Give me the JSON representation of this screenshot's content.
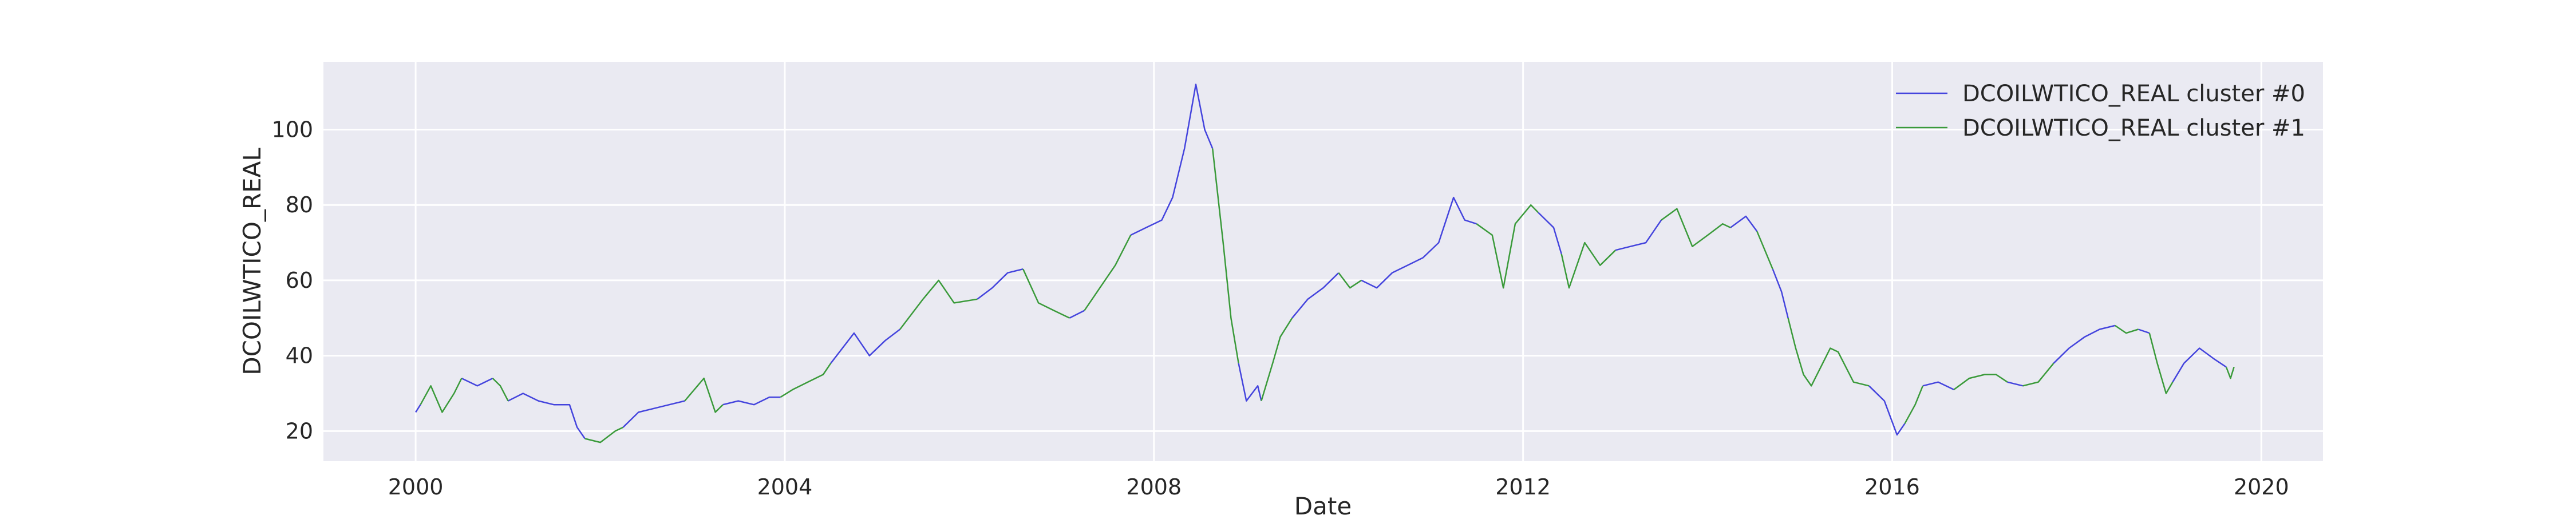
{
  "chart_data": {
    "type": "line",
    "title": "",
    "xlabel": "Date",
    "ylabel": "DCOILWTICO_REAL",
    "xlim": [
      "1999-01-01",
      "2020-09-01"
    ],
    "ylim": [
      12,
      118
    ],
    "xticks": [
      "2000",
      "2004",
      "2008",
      "2012",
      "2016",
      "2020"
    ],
    "xtick_dates": [
      "2000-01-01",
      "2004-01-01",
      "2008-01-01",
      "2012-01-01",
      "2016-01-01",
      "2020-01-01"
    ],
    "yticks": [
      20,
      40,
      60,
      80,
      100
    ],
    "grid": true,
    "legend": "top-right",
    "background": "#eaeaf2",
    "series": [
      {
        "name": "DCOILWTICO_REAL cluster #0",
        "color": "#4444dd",
        "segments": [
          [
            [
              "2000-01-01",
              25
            ],
            [
              "2000-01-20",
              27
            ]
          ],
          [
            [
              "2000-07-01",
              34
            ],
            [
              "2000-09-01",
              32
            ],
            [
              "2000-11-01",
              34
            ]
          ],
          [
            [
              "2001-01-01",
              28
            ],
            [
              "2001-03-01",
              30
            ],
            [
              "2001-05-01",
              28
            ],
            [
              "2001-07-01",
              27
            ],
            [
              "2001-09-01",
              27
            ],
            [
              "2001-10-01",
              21
            ],
            [
              "2001-11-01",
              18
            ]
          ],
          [
            [
              "2002-04-01",
              21
            ],
            [
              "2002-06-01",
              25
            ],
            [
              "2002-08-01",
              26
            ],
            [
              "2002-10-01",
              27
            ],
            [
              "2002-12-01",
              28
            ]
          ],
          [
            [
              "2003-05-01",
              27
            ],
            [
              "2003-07-01",
              28
            ],
            [
              "2003-09-01",
              27
            ],
            [
              "2003-11-01",
              29
            ],
            [
              "2003-12-15",
              29
            ]
          ],
          [
            [
              "2004-07-01",
              38
            ],
            [
              "2004-10-01",
              46
            ],
            [
              "2004-12-01",
              40
            ],
            [
              "2005-02-01",
              44
            ],
            [
              "2005-04-01",
              47
            ]
          ],
          [
            [
              "2006-02-01",
              55
            ],
            [
              "2006-04-01",
              58
            ],
            [
              "2006-06-01",
              62
            ],
            [
              "2006-08-01",
              63
            ]
          ],
          [
            [
              "2007-02-01",
              50
            ],
            [
              "2007-04-01",
              52
            ]
          ],
          [
            [
              "2007-10-01",
              72
            ],
            [
              "2007-12-01",
              74
            ],
            [
              "2008-02-01",
              76
            ],
            [
              "2008-03-15",
              82
            ],
            [
              "2008-05-01",
              95
            ],
            [
              "2008-06-15",
              112
            ],
            [
              "2008-07-20",
              100
            ],
            [
              "2008-08-20",
              95
            ]
          ],
          [
            [
              "2008-12-01",
              38
            ],
            [
              "2009-01-01",
              28
            ],
            [
              "2009-02-15",
              32
            ],
            [
              "2009-03-01",
              28
            ]
          ],
          [
            [
              "2009-07-01",
              50
            ],
            [
              "2009-09-01",
              55
            ],
            [
              "2009-11-01",
              58
            ],
            [
              "2010-01-01",
              62
            ]
          ],
          [
            [
              "2010-04-01",
              60
            ],
            [
              "2010-06-01",
              58
            ],
            [
              "2010-08-01",
              62
            ],
            [
              "2010-10-01",
              64
            ],
            [
              "2010-12-01",
              66
            ],
            [
              "2011-02-01",
              70
            ],
            [
              "2011-04-01",
              82
            ],
            [
              "2011-05-15",
              76
            ],
            [
              "2011-07-01",
              75
            ]
          ],
          [
            [
              "2012-03-01",
              78
            ],
            [
              "2012-05-01",
              74
            ],
            [
              "2012-06-01",
              67
            ]
          ],
          [
            [
              "2013-01-01",
              68
            ],
            [
              "2013-03-01",
              69
            ],
            [
              "2013-05-01",
              70
            ],
            [
              "2013-07-01",
              76
            ]
          ],
          [
            [
              "2014-04-01",
              74
            ],
            [
              "2014-06-01",
              77
            ],
            [
              "2014-07-15",
              73
            ]
          ],
          [
            [
              "2014-09-15",
              63
            ],
            [
              "2014-10-20",
              57
            ],
            [
              "2014-11-15",
              50
            ]
          ],
          [
            [
              "2015-06-01",
              41
            ]
          ],
          [
            [
              "2015-10-01",
              32
            ],
            [
              "2015-12-01",
              28
            ],
            [
              "2016-01-20",
              19
            ],
            [
              "2016-02-20",
              22
            ]
          ],
          [
            [
              "2016-05-01",
              32
            ],
            [
              "2016-07-01",
              33
            ],
            [
              "2016-09-01",
              31
            ]
          ],
          [
            [
              "2017-04-01",
              33
            ],
            [
              "2017-06-01",
              32
            ]
          ],
          [
            [
              "2017-10-01",
              38
            ],
            [
              "2017-12-01",
              42
            ],
            [
              "2018-02-01",
              45
            ],
            [
              "2018-04-01",
              47
            ],
            [
              "2018-06-01",
              48
            ]
          ],
          [
            [
              "2018-09-01",
              47
            ],
            [
              "2018-10-15",
              46
            ]
          ],
          [
            [
              "2019-01-15",
              33
            ],
            [
              "2019-03-01",
              38
            ],
            [
              "2019-05-01",
              42
            ],
            [
              "2019-07-01",
              39
            ],
            [
              "2019-08-15",
              37
            ]
          ]
        ]
      },
      {
        "name": "DCOILWTICO_REAL cluster #1",
        "color": "#3a9a3a",
        "segments": [
          [
            [
              "2000-01-20",
              27
            ],
            [
              "2000-03-01",
              32
            ],
            [
              "2000-04-15",
              25
            ],
            [
              "2000-06-01",
              30
            ],
            [
              "2000-07-01",
              34
            ]
          ],
          [
            [
              "2000-11-01",
              34
            ],
            [
              "2000-12-01",
              32
            ],
            [
              "2001-01-01",
              28
            ]
          ],
          [
            [
              "2001-11-01",
              18
            ],
            [
              "2002-01-01",
              17
            ],
            [
              "2002-03-01",
              20
            ],
            [
              "2002-04-01",
              21
            ]
          ],
          [
            [
              "2002-12-01",
              28
            ],
            [
              "2003-02-15",
              34
            ],
            [
              "2003-04-01",
              25
            ],
            [
              "2003-05-01",
              27
            ]
          ],
          [
            [
              "2003-12-15",
              29
            ],
            [
              "2004-02-01",
              31
            ],
            [
              "2004-04-01",
              33
            ],
            [
              "2004-06-01",
              35
            ],
            [
              "2004-07-01",
              38
            ]
          ],
          [
            [
              "2005-04-01",
              47
            ],
            [
              "2005-07-01",
              55
            ],
            [
              "2005-09-01",
              60
            ],
            [
              "2005-11-01",
              54
            ],
            [
              "2006-02-01",
              55
            ]
          ],
          [
            [
              "2006-08-01",
              63
            ],
            [
              "2006-10-01",
              54
            ],
            [
              "2006-12-01",
              52
            ],
            [
              "2007-02-01",
              50
            ]
          ],
          [
            [
              "2007-04-01",
              52
            ],
            [
              "2007-06-01",
              58
            ],
            [
              "2007-08-01",
              64
            ],
            [
              "2007-10-01",
              72
            ]
          ],
          [
            [
              "2008-08-20",
              95
            ],
            [
              "2008-10-01",
              70
            ],
            [
              "2008-11-01",
              50
            ],
            [
              "2008-12-01",
              38
            ]
          ],
          [
            [
              "2009-03-01",
              28
            ],
            [
              "2009-04-15",
              38
            ],
            [
              "2009-05-15",
              45
            ],
            [
              "2009-07-01",
              50
            ]
          ],
          [
            [
              "2010-01-01",
              62
            ],
            [
              "2010-02-15",
              58
            ],
            [
              "2010-04-01",
              60
            ]
          ],
          [
            [
              "2011-07-01",
              75
            ],
            [
              "2011-09-01",
              72
            ],
            [
              "2011-10-15",
              58
            ],
            [
              "2011-12-01",
              75
            ],
            [
              "2012-02-01",
              80
            ],
            [
              "2012-03-01",
              78
            ]
          ],
          [
            [
              "2012-06-01",
              67
            ],
            [
              "2012-07-01",
              58
            ],
            [
              "2012-09-01",
              70
            ],
            [
              "2012-11-01",
              64
            ],
            [
              "2013-01-01",
              68
            ]
          ],
          [
            [
              "2013-07-01",
              76
            ],
            [
              "2013-09-01",
              79
            ],
            [
              "2013-11-01",
              69
            ],
            [
              "2014-01-01",
              72
            ],
            [
              "2014-03-01",
              75
            ],
            [
              "2014-04-01",
              74
            ]
          ],
          [
            [
              "2014-07-15",
              73
            ],
            [
              "2014-08-15",
              68
            ],
            [
              "2014-09-15",
              63
            ]
          ],
          [
            [
              "2014-11-15",
              50
            ],
            [
              "2014-12-15",
              42
            ],
            [
              "2015-01-15",
              35
            ],
            [
              "2015-02-15",
              32
            ],
            [
              "2015-04-01",
              38
            ],
            [
              "2015-05-01",
              42
            ],
            [
              "2015-06-01",
              41
            ],
            [
              "2015-08-01",
              33
            ],
            [
              "2015-10-01",
              32
            ]
          ],
          [
            [
              "2016-02-20",
              22
            ],
            [
              "2016-04-01",
              27
            ],
            [
              "2016-05-01",
              32
            ]
          ],
          [
            [
              "2016-09-01",
              31
            ],
            [
              "2016-11-01",
              34
            ],
            [
              "2017-01-01",
              35
            ],
            [
              "2017-02-15",
              35
            ],
            [
              "2017-04-01",
              33
            ]
          ],
          [
            [
              "2017-06-01",
              32
            ],
            [
              "2017-08-01",
              33
            ],
            [
              "2017-10-01",
              38
            ]
          ],
          [
            [
              "2018-06-01",
              48
            ],
            [
              "2018-07-15",
              46
            ],
            [
              "2018-09-01",
              47
            ]
          ],
          [
            [
              "2018-10-15",
              46
            ],
            [
              "2018-11-15",
              38
            ],
            [
              "2018-12-20",
              30
            ],
            [
              "2019-01-15",
              33
            ]
          ],
          [
            [
              "2019-08-15",
              37
            ],
            [
              "2019-09-01",
              34
            ],
            [
              "2019-09-15",
              37
            ]
          ]
        ]
      }
    ]
  }
}
